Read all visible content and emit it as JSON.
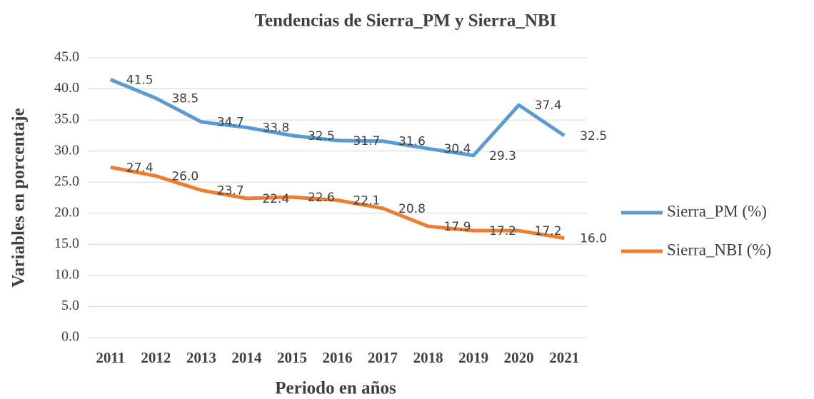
{
  "chart_data": {
    "type": "line",
    "title": "Tendencias de Sierra_PM y Sierra_NBI",
    "xlabel": "Periodo en años",
    "ylabel": "Variables en porcentaje",
    "categories": [
      "2011",
      "2012",
      "2013",
      "2014",
      "2015",
      "2016",
      "2017",
      "2018",
      "2019",
      "2020",
      "2021"
    ],
    "series": [
      {
        "name": "Sierra_PM (%)",
        "color": "#5b9bd5",
        "values": [
          41.5,
          38.5,
          34.7,
          33.8,
          32.5,
          31.7,
          31.6,
          30.4,
          29.3,
          37.4,
          32.5
        ],
        "value_labels": [
          "41.5",
          "38.5",
          "34.7",
          "33.8",
          "32.5",
          "31.7",
          "31.6",
          "30.4",
          "29.3",
          "37.4",
          "32.5"
        ]
      },
      {
        "name": "Sierra_NBI (%)",
        "color": "#ed7d31",
        "values": [
          27.4,
          26.0,
          23.7,
          22.4,
          22.6,
          22.1,
          20.8,
          17.9,
          17.2,
          17.2,
          16.0
        ],
        "value_labels": [
          "27.4",
          "26.0",
          "23.7",
          "22.4",
          "22.6",
          "22.1",
          "20.8",
          "17.9",
          "17.2",
          "17.2",
          "16.0"
        ]
      }
    ],
    "ylim": [
      0,
      45
    ],
    "yticks": [
      {
        "value": 0,
        "label": "0.0"
      },
      {
        "value": 5,
        "label": "5.0"
      },
      {
        "value": 10,
        "label": "10.0"
      },
      {
        "value": 15,
        "label": "15.0"
      },
      {
        "value": 20,
        "label": "20.0"
      },
      {
        "value": 25,
        "label": "25.0"
      },
      {
        "value": 30,
        "label": "30.0"
      },
      {
        "value": 35,
        "label": "35.0"
      },
      {
        "value": 40,
        "label": "40.0"
      },
      {
        "value": 45,
        "label": "45.0"
      }
    ],
    "grid": true,
    "legend": "right"
  }
}
